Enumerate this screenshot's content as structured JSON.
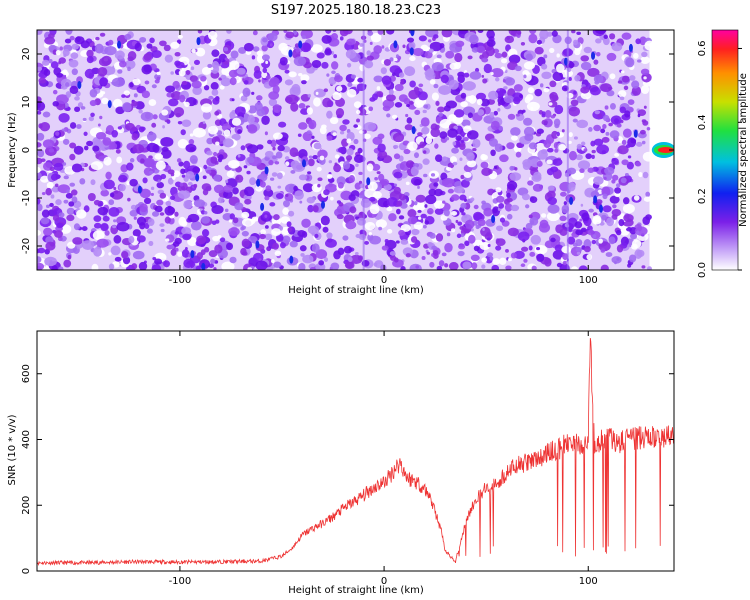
{
  "title": "S197.2025.180.18.23.C23",
  "chart_data": [
    {
      "type": "heatmap",
      "xlabel": "Height of straight line (km)",
      "ylabel": "Frequency (Hz)",
      "xlim": [
        -170,
        142
      ],
      "ylim": [
        -25,
        25
      ],
      "xticks": [
        -100,
        0,
        100
      ],
      "yticks": [
        -20,
        -10,
        0,
        10,
        20
      ],
      "colorbar": {
        "label": "Normalized spectral amplitude",
        "range": [
          0,
          0.65
        ],
        "ticks": [
          0.0,
          0.2,
          0.4,
          0.6
        ]
      },
      "features": [
        {
          "note": "strong peak",
          "x": 137,
          "y": 0,
          "value": 0.62
        }
      ]
    },
    {
      "type": "line",
      "xlabel": "Height of straight line (km)",
      "ylabel": "SNR (10 * v/v)",
      "xlim": [
        -170,
        142
      ],
      "ylim": [
        0,
        730
      ],
      "xticks": [
        -100,
        0,
        100
      ],
      "yticks": [
        0,
        200,
        400,
        600
      ],
      "color": "#ee3333",
      "series": [
        {
          "x": [
            -170,
            -150,
            -120,
            -100,
            -80,
            -60,
            -50,
            -45,
            -40,
            -35,
            -30,
            -25,
            -20,
            -15,
            -10,
            -5,
            0,
            3,
            5,
            8,
            10,
            12,
            15,
            18,
            20,
            22,
            25,
            28,
            30,
            33,
            35,
            40,
            45,
            50,
            55,
            60,
            65,
            70,
            75,
            80,
            85,
            88,
            90,
            95,
            98,
            100,
            101,
            103,
            106,
            110,
            115,
            120,
            125,
            130,
            135,
            142
          ],
          "y": [
            25,
            25,
            28,
            27,
            28,
            30,
            45,
            70,
            110,
            130,
            145,
            165,
            190,
            210,
            230,
            255,
            270,
            290,
            310,
            330,
            300,
            280,
            275,
            260,
            250,
            230,
            180,
            120,
            60,
            40,
            30,
            150,
            220,
            250,
            265,
            300,
            320,
            330,
            340,
            360,
            370,
            380,
            390,
            385,
            390,
            410,
            700,
            380,
            400,
            410,
            390,
            400,
            405,
            410,
            400,
            410
          ]
        }
      ]
    }
  ]
}
